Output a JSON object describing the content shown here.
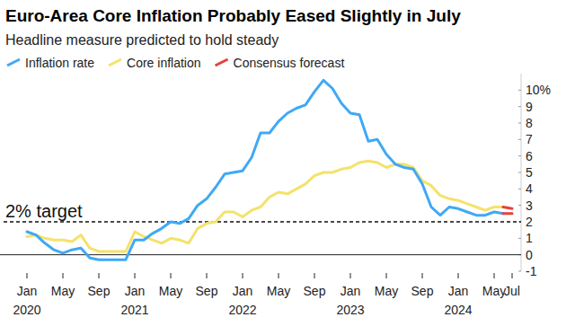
{
  "chart_data": {
    "type": "line",
    "title": "Euro-Area Core Inflation Probably Eased Slightly in July",
    "subtitle": "Headline measure predicted to hold steady",
    "categories": [
      "Jan 2020",
      null,
      null,
      null,
      "May",
      null,
      null,
      null,
      "Sep",
      null,
      null,
      null,
      "Jan 2021",
      null,
      null,
      null,
      "May",
      null,
      null,
      null,
      "Sep",
      null,
      null,
      null,
      "Jan 2022",
      null,
      null,
      null,
      "May",
      null,
      null,
      null,
      "Sep",
      null,
      null,
      null,
      "Jan 2023",
      null,
      null,
      null,
      "May",
      null,
      null,
      null,
      "Sep",
      null,
      null,
      null,
      "Jan 2024",
      null,
      null,
      null,
      "May",
      null,
      "Jul"
    ],
    "series": [
      {
        "name": "Inflation rate",
        "color": "#3fa9f5",
        "values": [
          1.4,
          1.2,
          0.7,
          0.3,
          0.1,
          0.3,
          0.4,
          -0.2,
          -0.3,
          -0.3,
          -0.3,
          -0.3,
          0.9,
          0.9,
          1.3,
          1.6,
          2.0,
          1.9,
          2.2,
          3.0,
          3.4,
          4.1,
          4.9,
          5.0,
          5.1,
          5.9,
          7.4,
          7.4,
          8.1,
          8.6,
          8.9,
          9.1,
          9.9,
          10.6,
          10.1,
          9.2,
          8.6,
          8.5,
          6.9,
          7.0,
          6.1,
          5.5,
          5.3,
          5.2,
          4.3,
          2.9,
          2.4,
          2.9,
          2.8,
          2.6,
          2.4,
          2.4,
          2.6,
          2.5,
          null
        ]
      },
      {
        "name": "Core inflation",
        "color": "#f4e26b",
        "values": [
          1.1,
          1.2,
          1.0,
          0.9,
          0.9,
          0.8,
          1.2,
          0.4,
          0.2,
          0.2,
          0.2,
          0.2,
          1.4,
          1.1,
          0.9,
          0.7,
          1.0,
          0.9,
          0.7,
          1.6,
          1.9,
          2.0,
          2.6,
          2.6,
          2.3,
          2.7,
          2.9,
          3.5,
          3.8,
          3.7,
          4.0,
          4.3,
          4.8,
          5.0,
          5.0,
          5.2,
          5.3,
          5.6,
          5.7,
          5.6,
          5.3,
          5.5,
          5.5,
          5.3,
          4.5,
          4.2,
          3.6,
          3.4,
          3.3,
          3.1,
          2.9,
          2.7,
          2.9,
          2.9,
          null
        ]
      },
      {
        "name": "Consensus forecast",
        "color": "#e5423c",
        "values": [
          null,
          null,
          null,
          null,
          null,
          null,
          null,
          null,
          null,
          null,
          null,
          null,
          null,
          null,
          null,
          null,
          null,
          null,
          null,
          null,
          null,
          null,
          null,
          null,
          null,
          null,
          null,
          null,
          null,
          null,
          null,
          null,
          null,
          null,
          null,
          null,
          null,
          null,
          null,
          null,
          null,
          null,
          null,
          null,
          null,
          null,
          null,
          null,
          null,
          null,
          null,
          null,
          null,
          2.5,
          2.5
        ]
      },
      {
        "name": "Consensus forecast",
        "color": "#e5423c",
        "values": [
          null,
          null,
          null,
          null,
          null,
          null,
          null,
          null,
          null,
          null,
          null,
          null,
          null,
          null,
          null,
          null,
          null,
          null,
          null,
          null,
          null,
          null,
          null,
          null,
          null,
          null,
          null,
          null,
          null,
          null,
          null,
          null,
          null,
          null,
          null,
          null,
          null,
          null,
          null,
          null,
          null,
          null,
          null,
          null,
          null,
          null,
          null,
          null,
          null,
          null,
          null,
          null,
          null,
          2.9,
          2.8
        ]
      }
    ],
    "ylim": [
      -1,
      11
    ],
    "yticks": [
      -1,
      0,
      1,
      2,
      3,
      4,
      5,
      6,
      7,
      8,
      9,
      {
        "value": 10,
        "label": "10%"
      }
    ],
    "grid": false,
    "legend": "top-left",
    "annotations": [
      {
        "text": "2% target",
        "y": 2,
        "line_style": "dashed"
      }
    ]
  }
}
